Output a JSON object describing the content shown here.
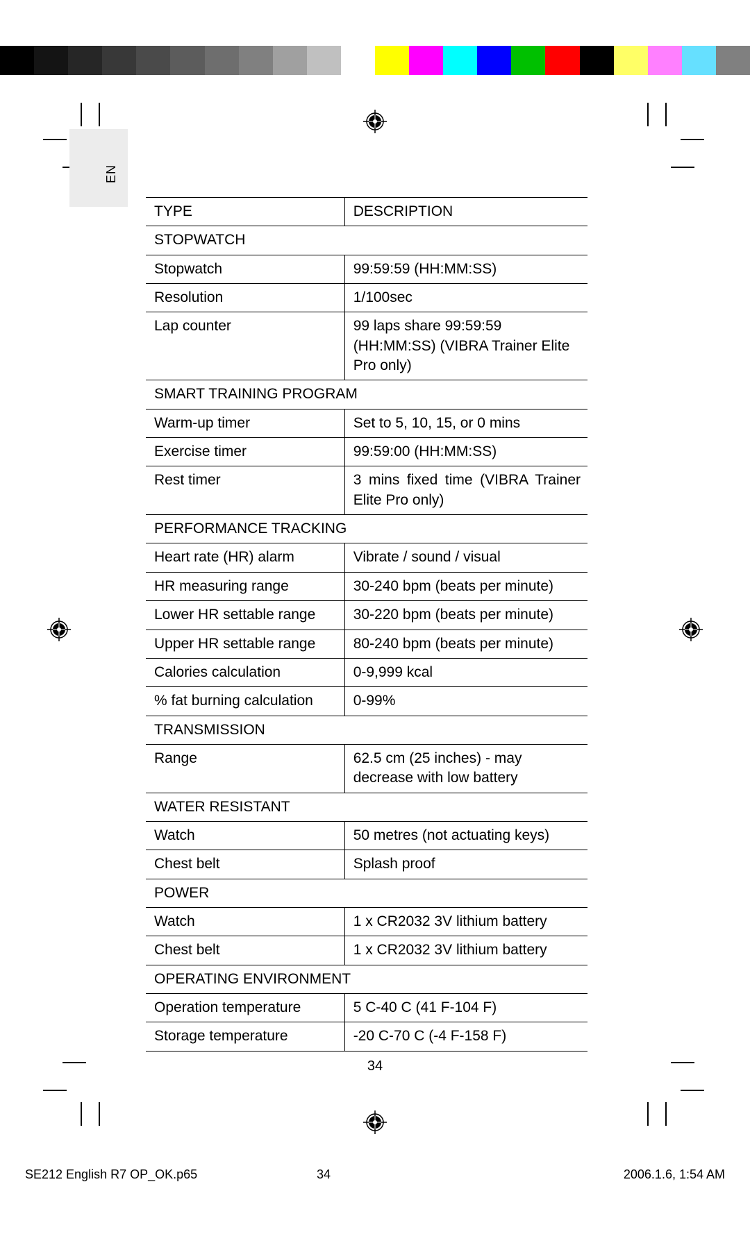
{
  "colorBars": {
    "left": [
      "#000000",
      "#141414",
      "#262626",
      "#383838",
      "#4a4a4a",
      "#5c5c5c",
      "#6e6e6e",
      "#808080",
      "#a0a0a0",
      "#c0c0c0",
      "#ffffff"
    ],
    "right": [
      "#ffff00",
      "#ff00ff",
      "#00ffff",
      "#0000ff",
      "#00c000",
      "#ff0000",
      "#000000",
      "#ffff66",
      "#ff80ff",
      "#66e0ff",
      "#808080"
    ]
  },
  "langLabel": "EN",
  "table": {
    "header": {
      "type": "TYPE",
      "desc": "DESCRIPTION"
    },
    "sections": [
      {
        "title": "STOPWATCH",
        "rows": [
          {
            "type": "Stopwatch",
            "desc": "99:59:59 (HH:MM:SS)"
          },
          {
            "type": "Resolution",
            "desc": "1/100sec"
          },
          {
            "type": "Lap counter",
            "desc": "99 laps share 99:59:59 (HH:MM:SS) (VIBRA Trainer Elite Pro only)"
          }
        ]
      },
      {
        "title": "SMART TRAINING PROGRAM",
        "rows": [
          {
            "type": "Warm-up timer",
            "desc": "Set to 5, 10, 15, or 0 mins"
          },
          {
            "type": "Exercise timer",
            "desc": "99:59:00 (HH:MM:SS)"
          },
          {
            "type": "Rest timer",
            "desc": "3 mins fixed time (VIBRA Trainer Elite Pro only)",
            "justify": true
          }
        ]
      },
      {
        "title": "PERFORMANCE TRACKING",
        "rows": [
          {
            "type": "Heart rate (HR) alarm",
            "desc": "Vibrate / sound / visual"
          },
          {
            "type": "HR measuring range",
            "desc": "30-240 bpm (beats per minute)"
          },
          {
            "type": "Lower HR settable range",
            "desc": "30-220 bpm (beats per minute)"
          },
          {
            "type": "Upper HR settable range",
            "desc": "80-240 bpm (beats per minute)"
          },
          {
            "type": "Calories calculation",
            "desc": "0-9,999 kcal"
          },
          {
            "type": "% fat burning calculation",
            "desc": "0-99%"
          }
        ]
      },
      {
        "title": "TRANSMISSION",
        "rows": [
          {
            "type": "Range",
            "desc": "62.5 cm (25 inches) - may decrease with low battery"
          }
        ]
      },
      {
        "title": "WATER RESISTANT",
        "rows": [
          {
            "type": "Watch",
            "desc": "50 metres (not actuating keys)"
          },
          {
            "type": "Chest belt",
            "desc": "Splash proof"
          }
        ]
      },
      {
        "title": "POWER",
        "rows": [
          {
            "type": "Watch",
            "desc": "1 x CR2032 3V lithium battery"
          },
          {
            "type": "Chest belt",
            "desc": "1 x CR2032 3V lithium battery"
          }
        ]
      },
      {
        "title": "OPERATING ENVIRONMENT",
        "rows": [
          {
            "type": "Operation temperature",
            "desc": "5 C-40 C (41 F-104 F)"
          },
          {
            "type": "Storage temperature",
            "desc": "-20 C-70 C (-4 F-158 F)"
          }
        ]
      }
    ]
  },
  "pageNumber": "34",
  "footer": {
    "file": "SE212 English R7 OP_OK.p65",
    "page": "34",
    "date": "2006.1.6, 1:54 AM"
  }
}
